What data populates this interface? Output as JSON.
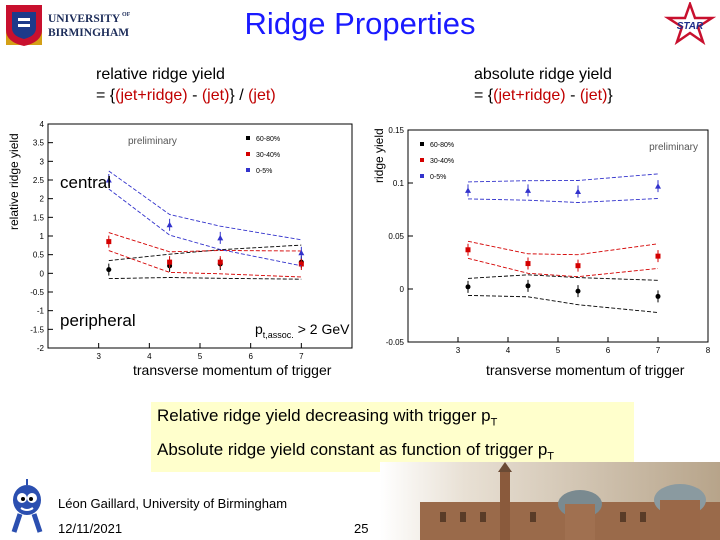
{
  "header": {
    "university_line1": "UNIVERSITY",
    "university_of": "OF",
    "university_line2": "BIRMINGHAM",
    "title": "Ridge Properties",
    "star_logo_text": "STAR"
  },
  "left_panel": {
    "title_line1": "relative ridge yield",
    "title_line2_prefix": "= {(jet+ridge) - (jet)} / (jet)",
    "ylabel": "relative ridge yield",
    "preliminary": "preliminary",
    "central": "central",
    "peripheral": "peripheral",
    "pt_cut_main": "p",
    "pt_cut_sub": "t,assoc.",
    "pt_cut_rest": " > 2 GeV",
    "xlabel": "transverse momentum of trigger"
  },
  "right_panel": {
    "title_line1": "absolute ridge yield",
    "title_line2": "= {(jet+ridge) - (jet)}",
    "ylabel": "ridge yield",
    "preliminary": "preliminary",
    "xlabel": "transverse momentum of trigger"
  },
  "summary": {
    "line1_main": "Relative ridge yield decreasing with trigger p",
    "line1_sub": "T",
    "line2_main": "Absolute ridge yield constant as function of trigger p",
    "line2_sub": "T"
  },
  "footer": {
    "author": "Léon Gaillard, University of Birmingham",
    "date": "12/11/2021",
    "page": "25"
  },
  "colors": {
    "title": "#1a1aff",
    "highlight": "#c00000",
    "summary_bg": "#ffffcc"
  },
  "chart_data": [
    {
      "type": "scatter",
      "title": "",
      "xlabel": "",
      "ylabel": "relative ridge yield",
      "xlim": [
        2,
        8
      ],
      "ylim": [
        -2,
        4
      ],
      "xticks": [
        3,
        4,
        5,
        6,
        7
      ],
      "yticks": [
        -2,
        -1.5,
        -1,
        -0.5,
        0,
        0.5,
        1,
        1.5,
        2,
        2.5,
        3,
        3.5,
        4
      ],
      "legend_position": "top-right",
      "series": [
        {
          "name": "60-80%",
          "color": "#000000",
          "x": [
            3.2,
            4.4,
            5.4,
            7.0
          ],
          "y": [
            0.1,
            0.2,
            0.25,
            0.3
          ]
        },
        {
          "name": "30-40%",
          "color": "#d40000",
          "x": [
            3.2,
            4.4,
            5.4,
            7.0
          ],
          "y": [
            0.85,
            0.3,
            0.3,
            0.25
          ]
        },
        {
          "name": "0-5%",
          "color": "#3333cc",
          "x": [
            3.2,
            4.4,
            5.4,
            7.0
          ],
          "y": [
            2.5,
            1.3,
            0.95,
            0.55
          ]
        }
      ]
    },
    {
      "type": "scatter",
      "title": "",
      "xlabel": "",
      "ylabel": "ridge yield",
      "xlim": [
        2,
        8
      ],
      "ylim": [
        -0.05,
        0.15
      ],
      "xticks": [
        3,
        4,
        5,
        6,
        7,
        8
      ],
      "yticks": [
        -0.05,
        0,
        0.05,
        0.1,
        0.15
      ],
      "legend_position": "top-left",
      "series": [
        {
          "name": "60-80%",
          "color": "#000000",
          "x": [
            3.2,
            4.4,
            5.4,
            7.0
          ],
          "y": [
            0.002,
            0.003,
            -0.002,
            -0.007
          ]
        },
        {
          "name": "30-40%",
          "color": "#d40000",
          "x": [
            3.2,
            4.4,
            5.4,
            7.0
          ],
          "y": [
            0.037,
            0.024,
            0.022,
            0.031
          ]
        },
        {
          "name": "0-5%",
          "color": "#3333cc",
          "x": [
            3.2,
            4.4,
            5.4,
            7.0
          ],
          "y": [
            0.093,
            0.093,
            0.092,
            0.097
          ]
        }
      ]
    }
  ]
}
